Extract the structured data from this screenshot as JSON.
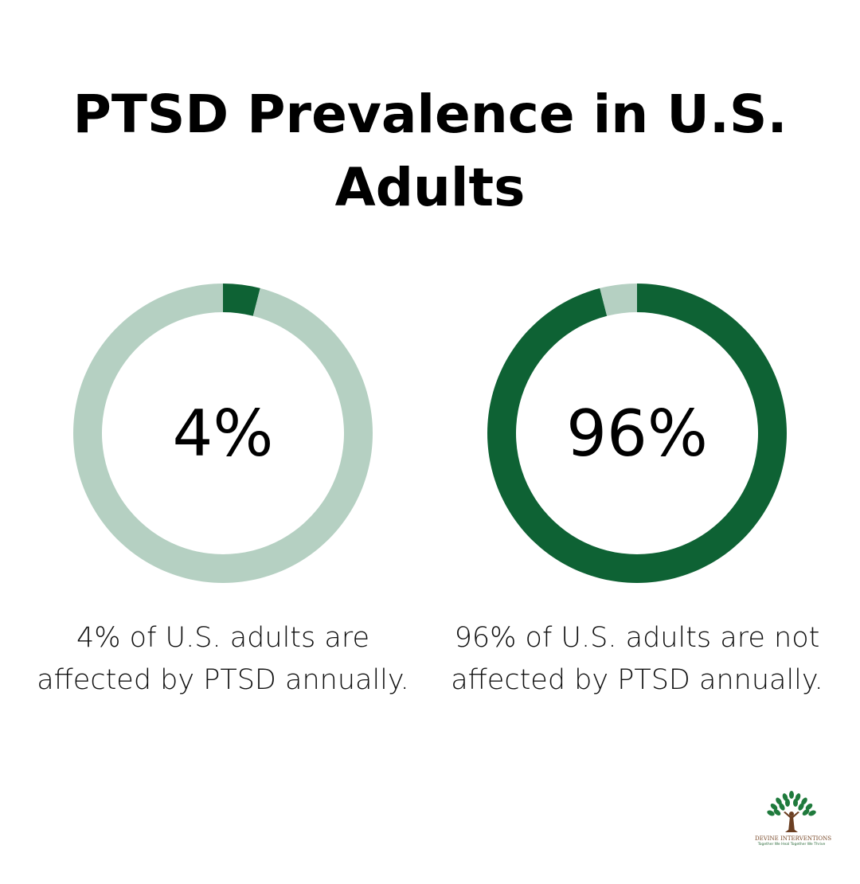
{
  "title": "PTSD Prevalence in U.S. Adults",
  "colors": {
    "dark_green": "#0e6234",
    "light_green": "#b5d0c2"
  },
  "chart_data": [
    {
      "type": "pie",
      "variant": "donut",
      "center_label": "4%",
      "slices": [
        {
          "label": "Affected by PTSD",
          "value": 4,
          "color": "#0e6234"
        },
        {
          "label": "Not affected",
          "value": 96,
          "color": "#b5d0c2"
        }
      ],
      "caption": "4% of U.S. adults are affected by PTSD annually."
    },
    {
      "type": "pie",
      "variant": "donut",
      "center_label": "96%",
      "slices": [
        {
          "label": "Not affected by PTSD",
          "value": 96,
          "color": "#0e6234"
        },
        {
          "label": "Affected",
          "value": 4,
          "color": "#b5d0c2"
        }
      ],
      "caption": "96% of U.S. adults are not affected by PTSD annually."
    }
  ],
  "captions": {
    "left_line1": "4% of U.S. adults are",
    "left_line2": "affected by PTSD annually.",
    "right_line1": "96% of U.S. adults are not",
    "right_line2": "affected by PTSD annually."
  },
  "logo": {
    "brand": "DEVINE INTERVENTIONS",
    "tagline": "Together We Heal Together We Thrive"
  }
}
